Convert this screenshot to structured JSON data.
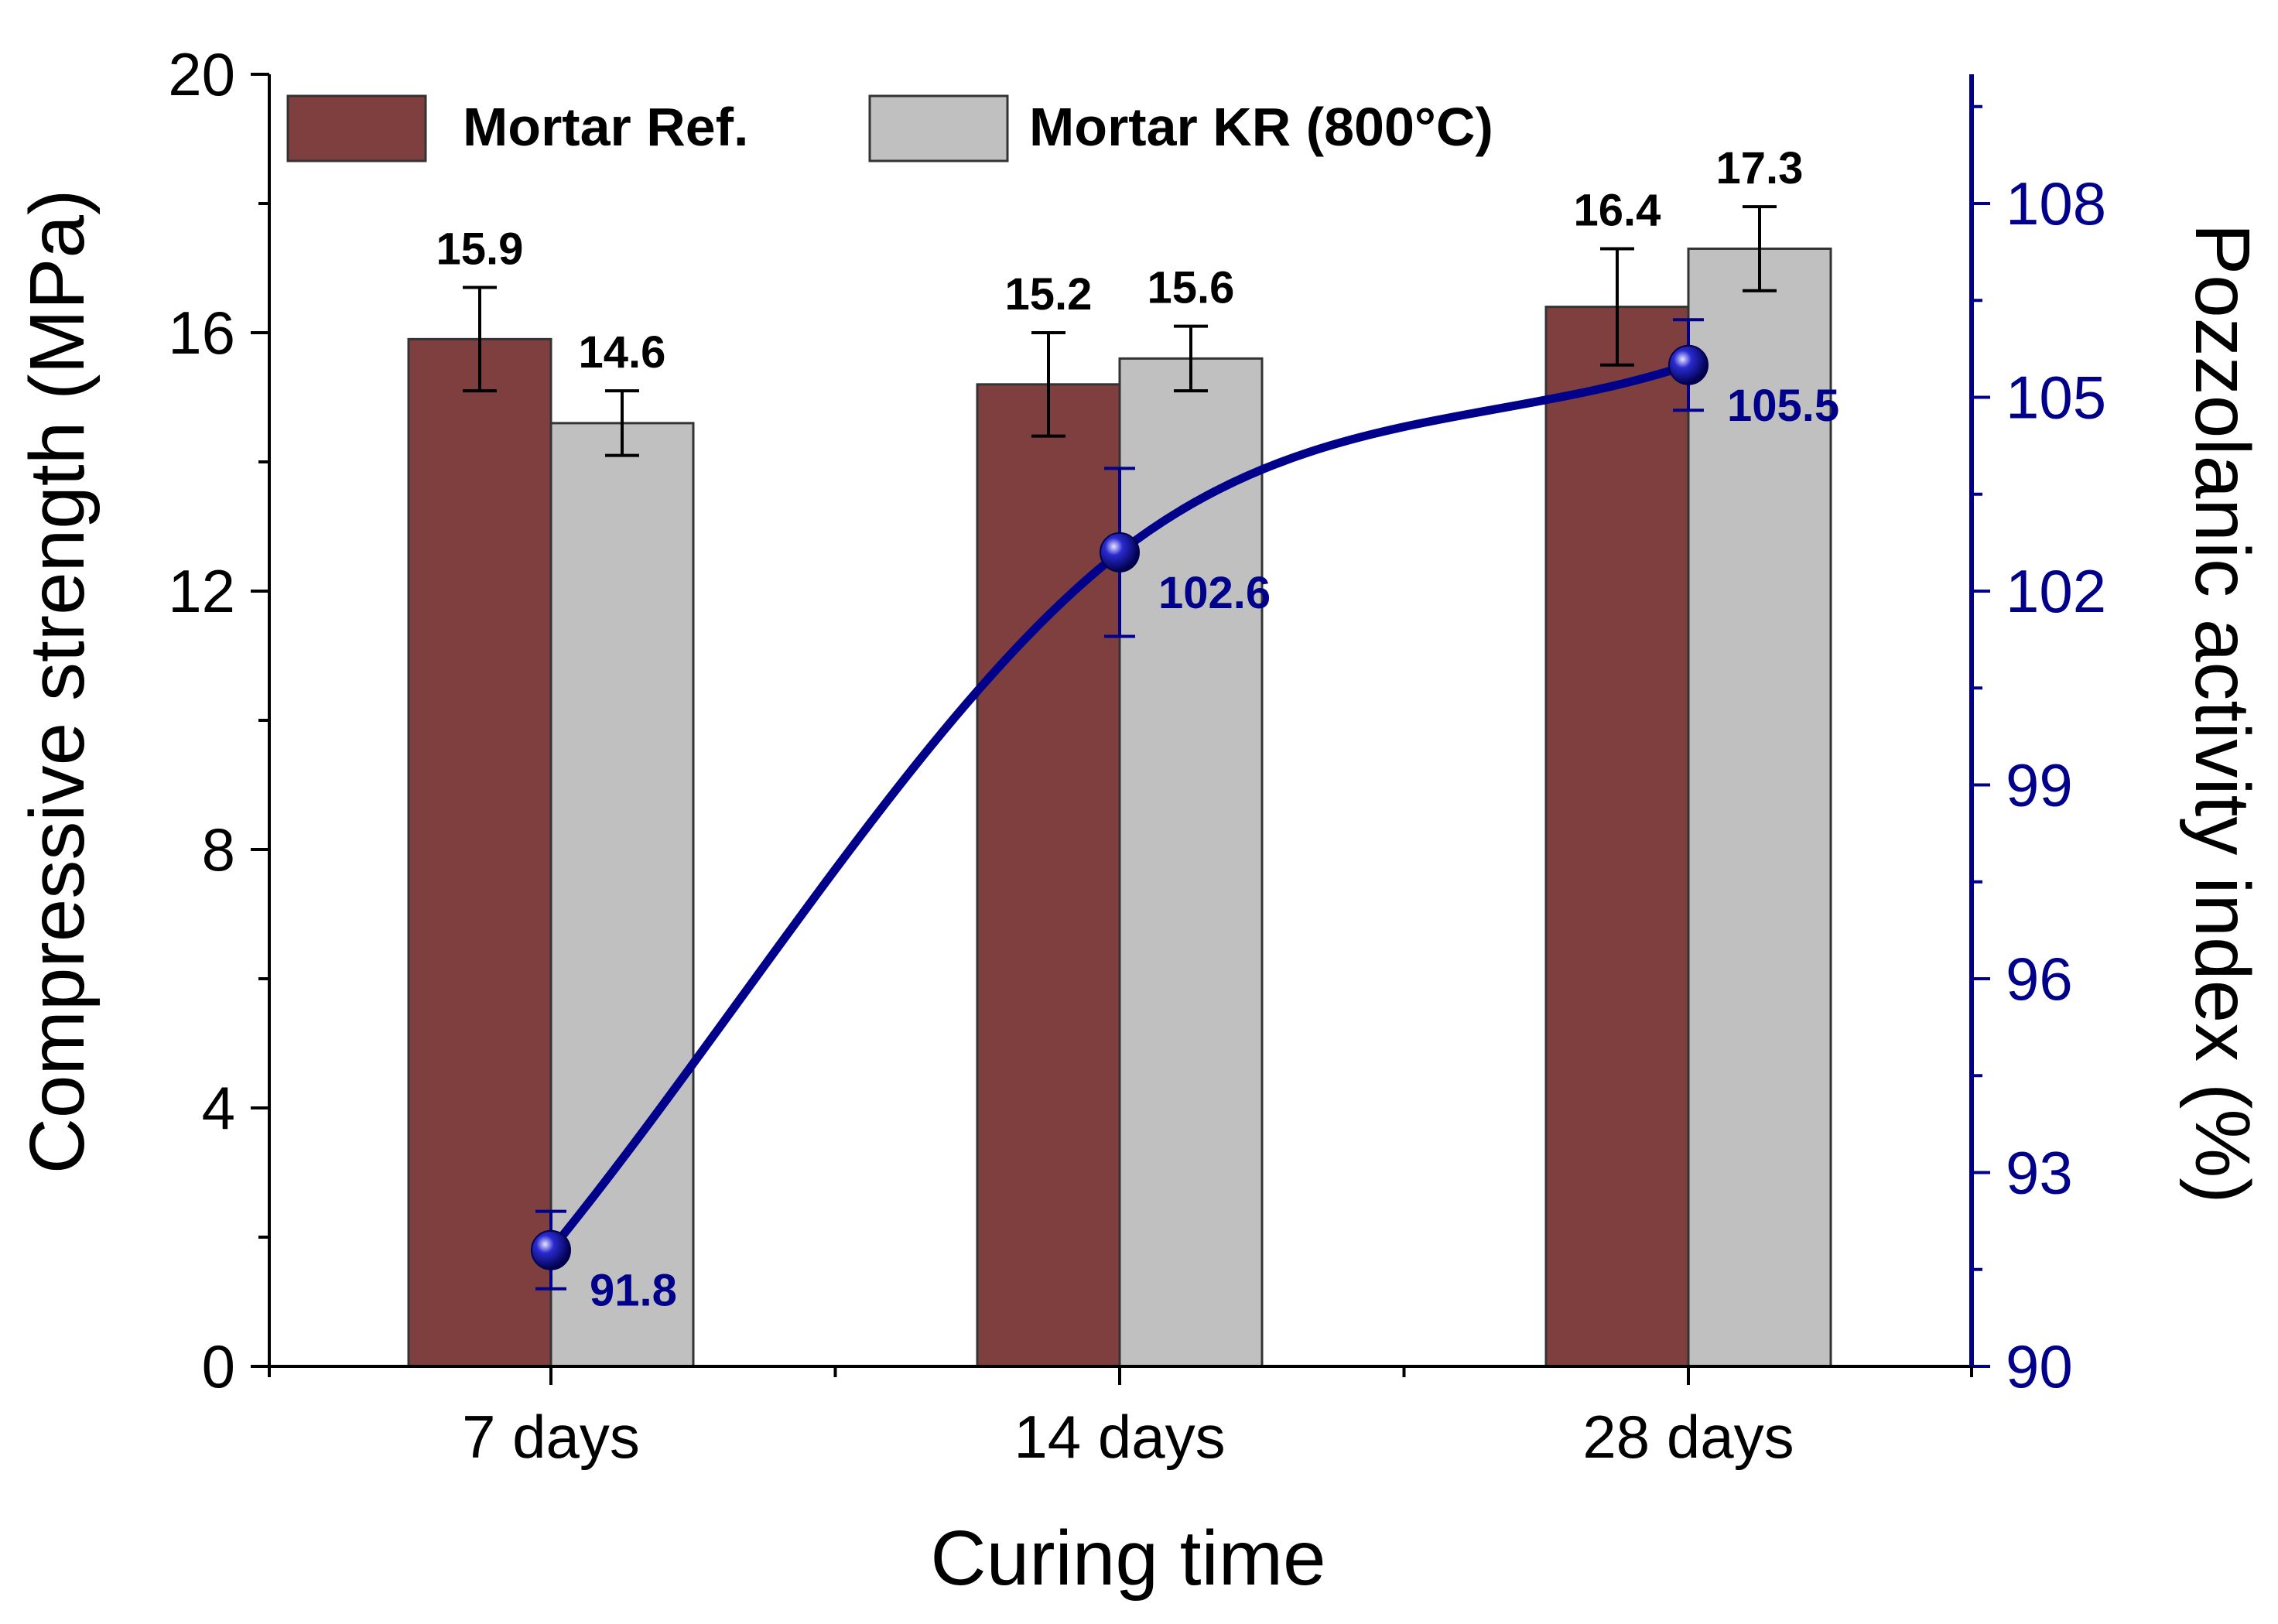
{
  "chart_data": {
    "type": "bar",
    "title": "",
    "xlabel": "Curing time",
    "ylabel": "Compressive strength (MPa)",
    "y2label": "Pozzolanic activity index (%)",
    "categories": [
      "7 days",
      "14 days",
      "28 days"
    ],
    "ylim": [
      0,
      20
    ],
    "yticks": [
      "0",
      "4",
      "8",
      "12",
      "16",
      "20"
    ],
    "y2lim": [
      90,
      110
    ],
    "y2ticks": [
      "90",
      "93",
      "96",
      "99",
      "102",
      "105",
      "108"
    ],
    "series": [
      {
        "name": "Mortar Ref.",
        "type": "bar",
        "axis": "left",
        "values": [
          15.9,
          15.2,
          16.4
        ],
        "labels": [
          "15.9",
          "15.2",
          "16.4"
        ],
        "errors": [
          0.8,
          0.8,
          0.9
        ],
        "color": "#7f3f3f"
      },
      {
        "name": "Mortar KR (800°C)",
        "type": "bar",
        "axis": "left",
        "values": [
          14.6,
          15.6,
          17.3
        ],
        "labels": [
          "14.6",
          "15.6",
          "17.3"
        ],
        "errors": [
          0.5,
          0.5,
          0.65
        ],
        "color": "#c0c0c0"
      },
      {
        "name": "Pozzolanic activity index",
        "type": "line",
        "axis": "right",
        "values": [
          91.8,
          102.6,
          105.5
        ],
        "labels": [
          "91.8",
          "102.6",
          "105.5"
        ],
        "errors": [
          0.6,
          1.3,
          0.7
        ],
        "color": "#00008b"
      }
    ],
    "legend": {
      "placement": "top-left"
    }
  }
}
